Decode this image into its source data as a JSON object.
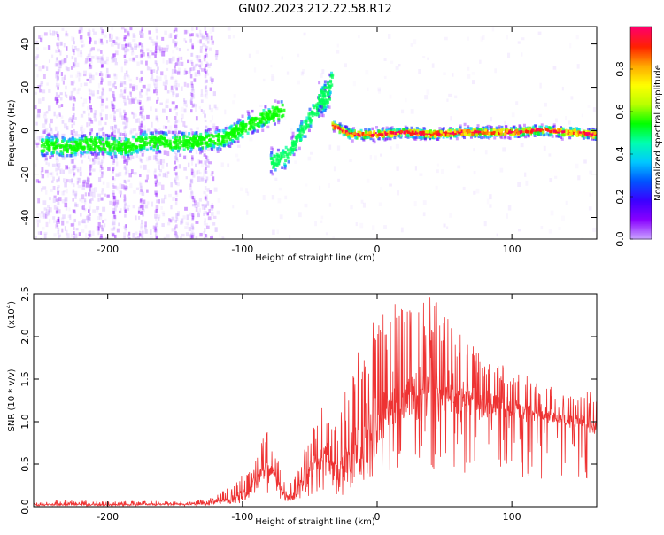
{
  "title": "GN02.2023.212.22.58.R12",
  "colors": {
    "snr_line": "#ee3333",
    "axis": "#000000",
    "background": "#ffffff",
    "colormap": [
      "#c8a0ff",
      "#8800ff",
      "#3a00ff",
      "#0055ff",
      "#00c8ff",
      "#00ffb0",
      "#00ff00",
      "#b8ff00",
      "#ffff00",
      "#ffaa00",
      "#ff2200",
      "#ff0066"
    ]
  },
  "chart_data": [
    {
      "type": "heatmap",
      "name": "spectrogram",
      "xlabel": "Height of straight line (km)",
      "ylabel": "Frequency (Hz)",
      "xlim": [
        -255,
        163
      ],
      "ylim": [
        -50,
        48
      ],
      "xticks": [
        -200,
        -100,
        0,
        100
      ],
      "yticks": [
        -40,
        -20,
        0,
        20,
        40
      ],
      "grid": false,
      "traces": [
        {
          "label": "main-trace",
          "points": [
            [
              -250,
              -6
            ],
            [
              -230,
              -7
            ],
            [
              -210,
              -5
            ],
            [
              -190,
              -7
            ],
            [
              -170,
              -4
            ],
            [
              -150,
              -5
            ],
            [
              -130,
              -4
            ],
            [
              -115,
              -3
            ],
            [
              -100,
              2
            ],
            [
              -85,
              7
            ],
            [
              -70,
              10
            ]
          ]
        },
        {
          "label": "rising-branch",
          "points": [
            [
              -80,
              -14
            ],
            [
              -70,
              -12
            ],
            [
              -62,
              -5
            ],
            [
              -55,
              2
            ],
            [
              -48,
              9
            ],
            [
              -42,
              13
            ],
            [
              -36,
              17
            ]
          ]
        },
        {
          "label": "upper-segment",
          "points": [
            [
              -45,
              15
            ],
            [
              -40,
              18
            ],
            [
              -36,
              21
            ],
            [
              -34,
              26
            ]
          ]
        },
        {
          "label": "flat-trace",
          "points": [
            [
              -34,
              3
            ],
            [
              -20,
              -1
            ],
            [
              0,
              -1
            ],
            [
              20,
              0
            ],
            [
              40,
              -1
            ],
            [
              60,
              0
            ],
            [
              80,
              0
            ],
            [
              100,
              0
            ],
            [
              120,
              1
            ],
            [
              140,
              0
            ],
            [
              163,
              -1
            ]
          ]
        }
      ],
      "colorbar": {
        "label": "Normalized spectral amplitude",
        "range": [
          0.0,
          1.0
        ],
        "ticks": [
          0.0,
          0.2,
          0.4,
          0.6,
          0.8
        ]
      }
    },
    {
      "type": "line",
      "name": "snr",
      "xlabel": "Height of straight line (km)",
      "ylabel": "SNR (10 * v/v)",
      "yscale_note": "(x10",
      "yscale_exp": "4",
      "yscale_close": ")",
      "xlim": [
        -255,
        163
      ],
      "ylim": [
        0.0,
        2.5
      ],
      "xticks": [
        -200,
        -100,
        0,
        100
      ],
      "yticks": [
        0.0,
        0.5,
        1.0,
        1.5,
        2.0,
        2.5
      ],
      "ytick_labels": [
        "0.0",
        "0.5",
        "1.0",
        "1.5",
        "2.0",
        "2.5"
      ],
      "grid": false,
      "envelope": {
        "x": [
          -255,
          -230,
          -200,
          -170,
          -140,
          -120,
          -105,
          -95,
          -88,
          -82,
          -75,
          -68,
          -60,
          -52,
          -45,
          -38,
          -30,
          -22,
          -15,
          -8,
          0,
          10,
          20,
          30,
          40,
          50,
          60,
          70,
          80,
          90,
          100,
          110,
          120,
          130,
          140,
          150,
          163
        ],
        "mean": [
          0.02,
          0.03,
          0.02,
          0.03,
          0.03,
          0.05,
          0.1,
          0.2,
          0.35,
          0.5,
          0.35,
          0.1,
          0.15,
          0.35,
          0.55,
          0.6,
          0.4,
          0.5,
          0.65,
          0.8,
          1.0,
          1.2,
          1.3,
          1.35,
          1.4,
          1.35,
          1.3,
          1.25,
          1.2,
          1.2,
          1.15,
          1.12,
          1.1,
          1.05,
          1.0,
          1.0,
          0.95
        ],
        "peak": [
          0.05,
          0.08,
          0.06,
          0.07,
          0.06,
          0.12,
          0.3,
          0.45,
          0.7,
          0.9,
          0.65,
          0.25,
          0.4,
          0.9,
          1.0,
          1.3,
          0.9,
          1.5,
          1.9,
          2.1,
          2.3,
          2.45,
          2.4,
          2.45,
          2.5,
          2.3,
          2.1,
          1.9,
          1.8,
          1.7,
          1.6,
          1.55,
          1.5,
          1.45,
          1.3,
          1.3,
          1.4
        ]
      }
    }
  ]
}
